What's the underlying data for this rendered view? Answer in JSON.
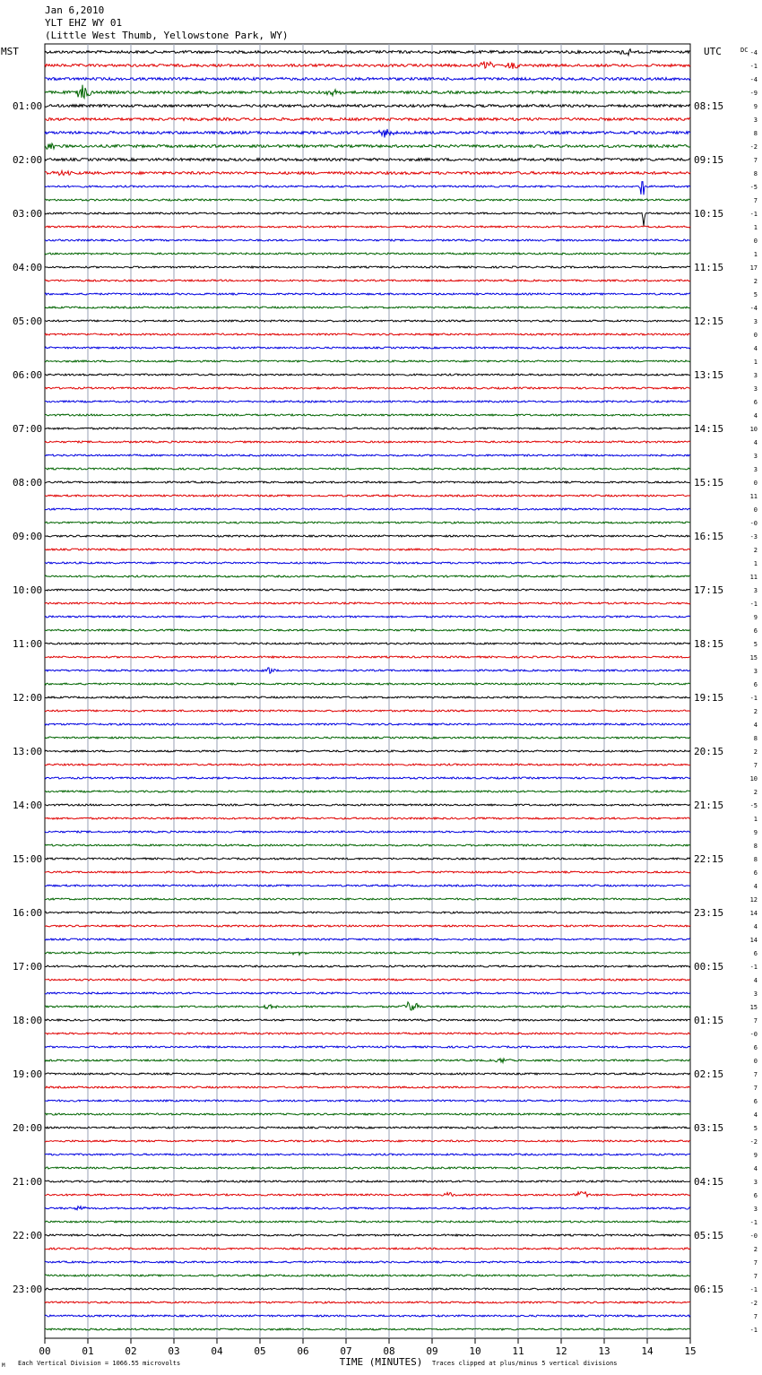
{
  "header": {
    "date": "Jan 6,2010",
    "station": "YLT EHZ WY 01",
    "location": "(Little West Thumb, Yellowstone Park, WY)"
  },
  "labels": {
    "left_tz": "MST",
    "right_tz": "UTC",
    "dc": "DC",
    "xlabel": "TIME (MINUTES)",
    "scale": "Each Vertical Division = 1066.55 microvolts",
    "clip": "Traces clipped at plus/minus 5 vertical divisions",
    "corner": "M"
  },
  "colors": {
    "cycle": [
      "#000000",
      "#e00000",
      "#0000e0",
      "#006400"
    ],
    "grid": "#9aa0b4"
  },
  "chart_data": {
    "type": "line",
    "description_free": true,
    "x_ticks": [
      "00",
      "01",
      "02",
      "03",
      "04",
      "05",
      "06",
      "07",
      "08",
      "09",
      "10",
      "11",
      "12",
      "13",
      "14",
      "15"
    ],
    "xlim": [
      0,
      15
    ],
    "mst_hours": [
      "01:00",
      "02:00",
      "03:00",
      "04:00",
      "05:00",
      "06:00",
      "07:00",
      "08:00",
      "09:00",
      "10:00",
      "11:00",
      "12:00",
      "13:00",
      "14:00",
      "15:00",
      "16:00",
      "17:00",
      "18:00",
      "19:00",
      "20:00",
      "21:00",
      "22:00",
      "23:00"
    ],
    "utc_hours": [
      "08:15",
      "09:15",
      "10:15",
      "11:15",
      "12:15",
      "13:15",
      "14:15",
      "15:15",
      "16:15",
      "17:15",
      "18:15",
      "19:15",
      "20:15",
      "21:15",
      "22:15",
      "23:15",
      "00:15",
      "01:15",
      "02:15",
      "03:15",
      "04:15",
      "05:15",
      "06:15"
    ],
    "dc_offsets": [
      "-4",
      "-1",
      "-4",
      "-9",
      "9",
      "3",
      "8",
      "-2",
      "7",
      "8",
      "-5",
      "7",
      "-1",
      "1",
      "0",
      "1",
      "17",
      "2",
      "5",
      "-4",
      "3",
      "0",
      "4",
      "1",
      "3",
      "3",
      "6",
      "4",
      "10",
      "4",
      "3",
      "3",
      "0",
      "11",
      "0",
      "-0",
      "-3",
      "2",
      "1",
      "11",
      "3",
      "-1",
      "9",
      "6",
      "5",
      "15",
      "3",
      "6",
      "-1",
      "2",
      "4",
      "8",
      "2",
      "7",
      "10",
      "2",
      "-5",
      "1",
      "9",
      "8",
      "8",
      "6",
      "4",
      "12",
      "14",
      "4",
      "14",
      "6",
      "-1",
      "4",
      "3",
      "15",
      "7",
      "-0",
      "6",
      "0",
      "7",
      "7",
      "6",
      "4",
      "5",
      "-2",
      "9",
      "4",
      "3",
      "6",
      "3",
      "-1",
      "-0",
      "2",
      "7",
      "7",
      "-1",
      "-2",
      "7",
      "-1"
    ],
    "traces": 96,
    "events": [
      {
        "trace": 1,
        "minute": 10.3,
        "amp": 5
      },
      {
        "trace": 1,
        "minute": 10.9,
        "amp": 4
      },
      {
        "trace": 3,
        "minute": 0.9,
        "amp": 9
      },
      {
        "trace": 3,
        "minute": 6.7,
        "amp": 3
      },
      {
        "trace": 0,
        "minute": 13.5,
        "amp": 4
      },
      {
        "trace": 6,
        "minute": 7.9,
        "amp": 6
      },
      {
        "trace": 7,
        "minute": 0.1,
        "amp": 4
      },
      {
        "trace": 9,
        "minute": 0.4,
        "amp": 3
      },
      {
        "trace": 10,
        "minute": 13.88,
        "amp": 40
      },
      {
        "trace": 12,
        "minute": 13.9,
        "amp": 25
      },
      {
        "trace": 46,
        "minute": 5.2,
        "amp": 4
      },
      {
        "trace": 67,
        "minute": 5.9,
        "amp": 2
      },
      {
        "trace": 71,
        "minute": 5.2,
        "amp": 3
      },
      {
        "trace": 71,
        "minute": 8.5,
        "amp": 7
      },
      {
        "trace": 75,
        "minute": 10.6,
        "amp": 3
      },
      {
        "trace": 85,
        "minute": 12.5,
        "amp": 5
      },
      {
        "trace": 85,
        "minute": 9.4,
        "amp": 3
      },
      {
        "trace": 86,
        "minute": 0.8,
        "amp": 3
      }
    ]
  }
}
